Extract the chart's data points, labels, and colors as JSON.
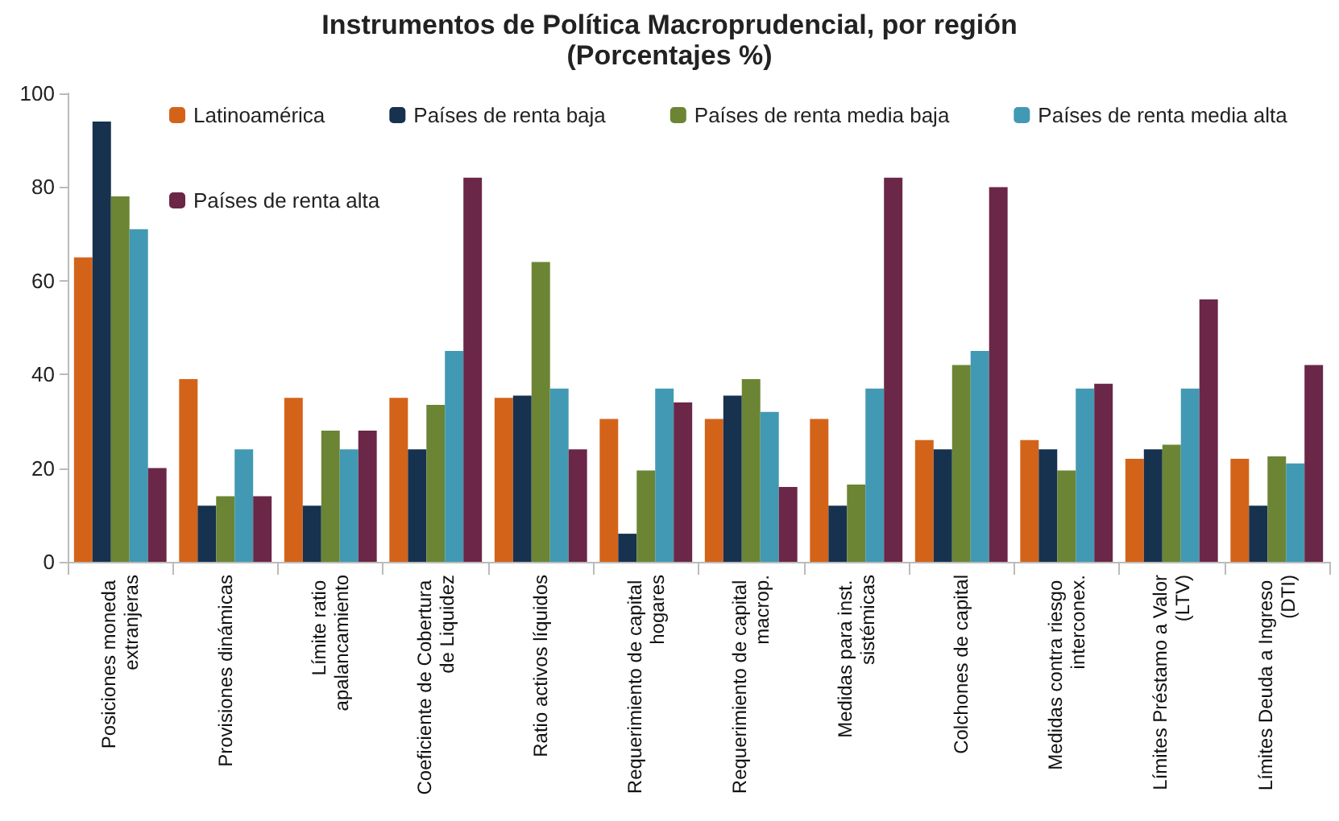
{
  "chart_data": {
    "type": "bar",
    "title": "Instrumentos de Política Macroprudencial, por región",
    "subtitle": "(Porcentajes %)",
    "categories": [
      "Posiciones moneda extranjeras",
      "Provisiones dinámicas",
      "Límite ratio apalancamiento",
      "Coeficiente de Cobertura de Liquidez",
      "Ratio activos líquidos",
      "Requerimiento de capital hogares",
      "Requerimiento de capital macrop.",
      "Medidas para inst. sistémicas",
      "Colchones de capital",
      "Medidas contra riesgo interconex.",
      "Límites Préstamo a Valor (LTV)",
      "Límites Deuda a Ingreso (DTI)"
    ],
    "series": [
      {
        "name": "Latinoamérica",
        "color": "#d4631a",
        "values": [
          65,
          39,
          35,
          35,
          35,
          30.5,
          30.5,
          30.5,
          26,
          26,
          22,
          22
        ]
      },
      {
        "name": "Países de renta baja",
        "color": "#17324f",
        "values": [
          94,
          12,
          12,
          24,
          35.5,
          6,
          35.5,
          12,
          24,
          24,
          24,
          12
        ]
      },
      {
        "name": "Países de renta media baja",
        "color": "#6b8535",
        "values": [
          78,
          14,
          28,
          33.5,
          64,
          19.5,
          39,
          16.5,
          42,
          19.5,
          25,
          22.5
        ]
      },
      {
        "name": "Países de renta media alta",
        "color": "#4299b3",
        "values": [
          71,
          24,
          24,
          45,
          37,
          37,
          32,
          37,
          45,
          37,
          37,
          21
        ]
      },
      {
        "name": "Países de renta alta",
        "color": "#6b2747",
        "values": [
          20,
          14,
          28,
          82,
          24,
          34,
          16,
          82,
          80,
          38,
          56,
          42
        ]
      }
    ],
    "ylim": [
      0,
      100
    ],
    "yticks": [
      0,
      20,
      40,
      60,
      80,
      100
    ],
    "grid": false,
    "legend": "top"
  }
}
